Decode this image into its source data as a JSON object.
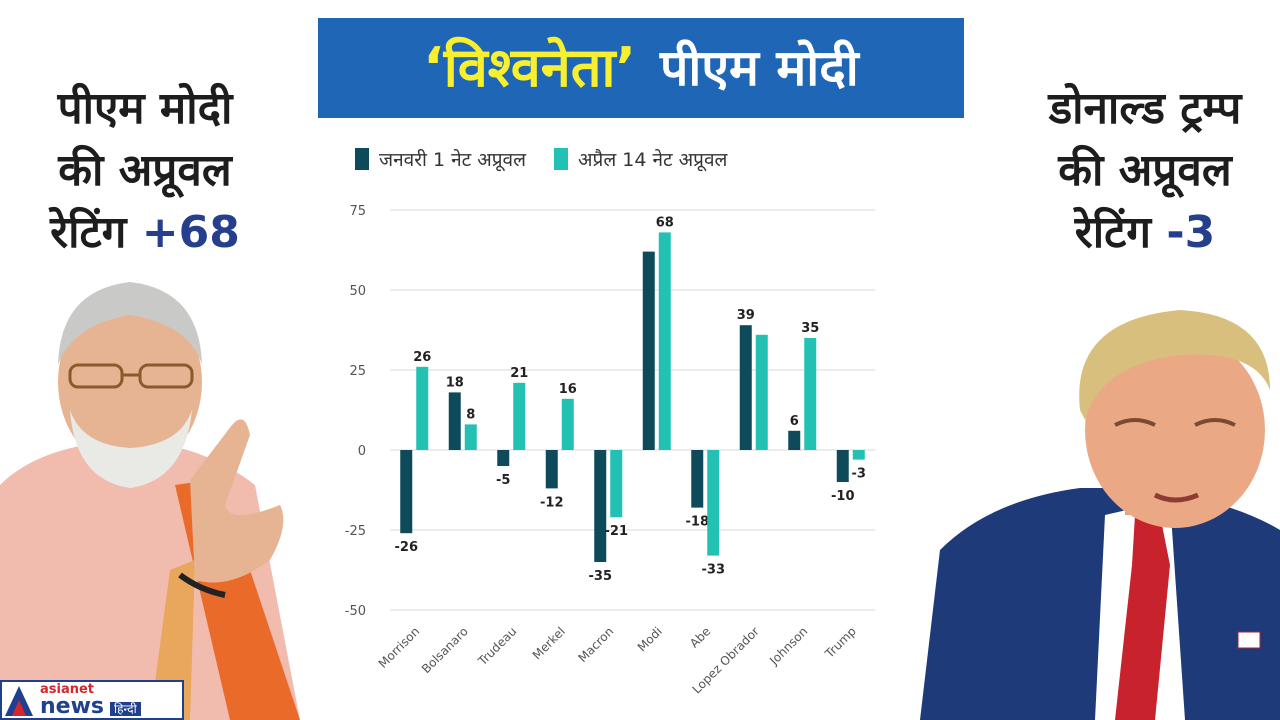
{
  "banner": {
    "highlight": "‘विश्वनेता’",
    "rest": "पीएम मोदी"
  },
  "left_caption": {
    "line1": "पीएम मोदी",
    "line2": "की अप्रूवल",
    "line3_text": "रेटिंग",
    "line3_num": "+68"
  },
  "right_caption": {
    "line1": "डोनाल्ड ट्रम्प",
    "line2": "की अप्रूवल",
    "line3_text": "रेटिंग",
    "line3_num": "-3"
  },
  "logo": {
    "line1": "asianet",
    "line2": "news",
    "badge": "हिन्दी"
  },
  "colors": {
    "banner": "#1f67b6",
    "banner_highlight": "#f7ef2f",
    "series_jan": "#0e4a5a",
    "series_apr": "#22c1b3",
    "rating_num": "#253f8c"
  },
  "chart_data": {
    "type": "bar",
    "categories": [
      "Morrison",
      "Bolsanaro",
      "Trudeau",
      "Merkel",
      "Macron",
      "Modi",
      "Abe",
      "Lopez Obrador",
      "Johnson",
      "Trump"
    ],
    "series": [
      {
        "name": "जनवरी 1 नेट अप्रूवल",
        "values": [
          -26,
          18,
          -5,
          -12,
          -35,
          62,
          -18,
          39,
          6,
          -10
        ],
        "labels": [
          "-26",
          "18",
          "-5",
          "-12",
          "-35",
          "",
          "-18",
          "39",
          "6",
          "-10"
        ]
      },
      {
        "name": "अप्रैल 14 नेट अप्रूवल",
        "values": [
          26,
          8,
          21,
          16,
          -21,
          68,
          -33,
          36,
          35,
          -3
        ],
        "labels": [
          "26",
          "8",
          "21",
          "16",
          "-21",
          "68",
          "-33",
          "",
          "35",
          "-3"
        ]
      }
    ],
    "yticks": [
      "75",
      "50",
      "25",
      "0",
      "-25",
      "-50"
    ],
    "ylim": [
      -50,
      75
    ],
    "grid": true,
    "legend_position": "top"
  }
}
